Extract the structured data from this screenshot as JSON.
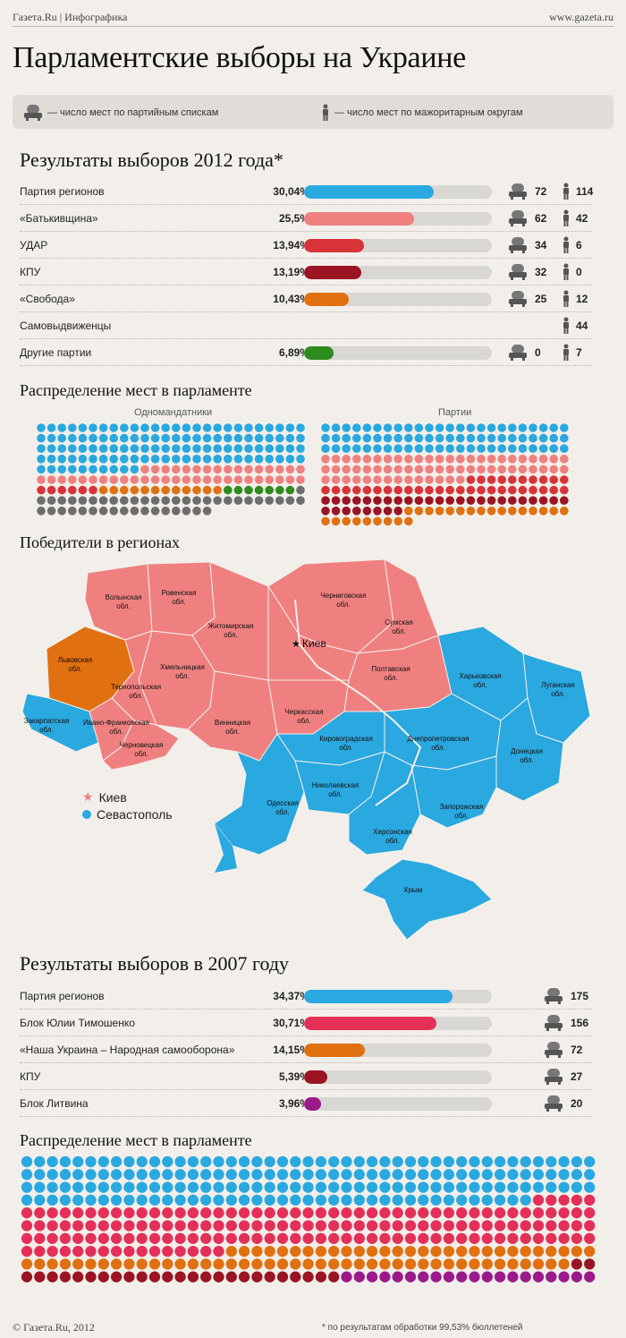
{
  "header": {
    "left": "Газета.Ru | Инфографика",
    "right": "www.gazeta.ru"
  },
  "title": "Парламентские выборы на Украине",
  "legend": {
    "list_label": "— число мест по партийным спискам",
    "district_label": "— число мест по мажоритарным округам"
  },
  "colors": {
    "blue": "#2aa8e0",
    "pink": "#f08080",
    "red": "#d9333a",
    "darkred": "#9b1424",
    "orange": "#e07010",
    "green": "#2e8b1e",
    "gray": "#6d6d6d",
    "crimson": "#e43058",
    "purple": "#9b1a8a"
  },
  "section2012": {
    "title": "Результаты выборов 2012 года*",
    "rows": [
      {
        "name": "Партия регионов",
        "pct": "30,04%",
        "value": 30.04,
        "color": "#2aa8e0",
        "list": "72",
        "district": "114"
      },
      {
        "name": "«Батькивщина»",
        "pct": "25,5%",
        "value": 25.5,
        "color": "#f08080",
        "list": "62",
        "district": "42"
      },
      {
        "name": "УДАР",
        "pct": "13,94%",
        "value": 13.94,
        "color": "#d9333a",
        "list": "34",
        "district": "6"
      },
      {
        "name": "КПУ",
        "pct": "13,19%",
        "value": 13.19,
        "color": "#9b1424",
        "list": "32",
        "district": "0"
      },
      {
        "name": "«Свобода»",
        "pct": "10,43%",
        "value": 10.43,
        "color": "#e07010",
        "list": "25",
        "district": "12"
      },
      {
        "name": "Самовыдвиженцы",
        "pct": "",
        "value": null,
        "color": "",
        "list": "",
        "district": "44"
      },
      {
        "name": "Другие партии",
        "pct": "6,89%",
        "value": 6.89,
        "color": "#2e8b1e",
        "list": "0",
        "district": "7"
      }
    ],
    "distribution_title": "Распределение мест в парламенте",
    "single_label": "Одномандатники",
    "party_label": "Партии"
  },
  "chart_data": [
    {
      "type": "bar",
      "categories": [
        "Партия регионов",
        "«Батькивщина»",
        "УДАР",
        "КПУ",
        "«Свобода»",
        "Другие партии"
      ],
      "values": [
        30.04,
        25.5,
        13.94,
        13.19,
        10.43,
        6.89
      ],
      "title": "Результаты выборов 2012 года*"
    },
    {
      "type": "bar",
      "categories": [
        "Партия регионов",
        "Блок Юлии Тимошенко",
        "«Наша Украина – Народная самооборона»",
        "КПУ",
        "Блок Литвина"
      ],
      "values": [
        34.37,
        30.71,
        14.15,
        5.39,
        3.96
      ],
      "title": "Результаты выборов в 2007 году"
    }
  ],
  "map": {
    "title": "Победители в регионах",
    "kiev": "Киев",
    "key_kiev": "Киев",
    "key_sevastopol": "Севастополь",
    "regions": [
      {
        "name": "Волынская обл.",
        "color": "#f08080"
      },
      {
        "name": "Ровенская обл.",
        "color": "#f08080"
      },
      {
        "name": "Житомирская обл.",
        "color": "#f08080"
      },
      {
        "name": "Черниговская обл.",
        "color": "#f08080"
      },
      {
        "name": "Сумская обл.",
        "color": "#f08080"
      },
      {
        "name": "Львовская обл.",
        "color": "#e07010"
      },
      {
        "name": "Хмельницкая обл.",
        "color": "#f08080"
      },
      {
        "name": "Тернопольская обл.",
        "color": "#f08080"
      },
      {
        "name": "Закарпатская обл.",
        "color": "#2aa8e0"
      },
      {
        "name": "Ивано-Франковская обл.",
        "color": "#f08080"
      },
      {
        "name": "Черновецкая обл.",
        "color": "#f08080"
      },
      {
        "name": "Винницкая обл.",
        "color": "#f08080"
      },
      {
        "name": "Черкасская обл.",
        "color": "#f08080"
      },
      {
        "name": "Полтавская обл.",
        "color": "#f08080"
      },
      {
        "name": "Харьковская обл.",
        "color": "#2aa8e0"
      },
      {
        "name": "Луганская обл.",
        "color": "#2aa8e0"
      },
      {
        "name": "Кировоградская обл.",
        "color": "#2aa8e0"
      },
      {
        "name": "Днепропетровская обл.",
        "color": "#2aa8e0"
      },
      {
        "name": "Донецкая обл.",
        "color": "#2aa8e0"
      },
      {
        "name": "Одесская обл.",
        "color": "#2aa8e0"
      },
      {
        "name": "Николаевская обл.",
        "color": "#2aa8e0"
      },
      {
        "name": "Запорожская обл.",
        "color": "#2aa8e0"
      },
      {
        "name": "Херсонская обл.",
        "color": "#2aa8e0"
      },
      {
        "name": "Крым",
        "color": "#2aa8e0"
      }
    ]
  },
  "section2007": {
    "title": "Результаты выборов в 2007 году",
    "rows": [
      {
        "name": "Партия регионов",
        "pct": "34,37%",
        "value": 34.37,
        "color": "#2aa8e0",
        "seats": "175"
      },
      {
        "name": "Блок Юлии Тимошенко",
        "pct": "30,71%",
        "value": 30.71,
        "color": "#e43058",
        "seats": "156"
      },
      {
        "name": "«Наша Украина – Народная самооборона»",
        "pct": "14,15%",
        "value": 14.15,
        "color": "#e07010",
        "seats": "72"
      },
      {
        "name": "КПУ",
        "pct": "5,39%",
        "value": 5.39,
        "color": "#9b1424",
        "seats": "27"
      },
      {
        "name": "Блок Литвина",
        "pct": "3,96%",
        "value": 3.96,
        "color": "#9b1a8a",
        "seats": "20"
      }
    ],
    "distribution_title": "Распределение мест в парламенте"
  },
  "footer": {
    "left": "© Газета.Ru, 2012",
    "right": "* по результатам обработки 99,53% бюллетеней"
  }
}
